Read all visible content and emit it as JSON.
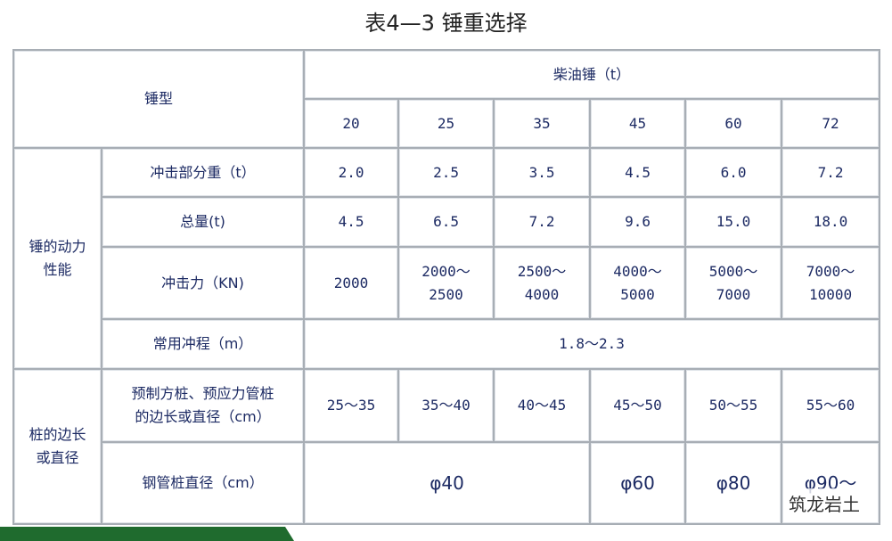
{
  "title": "表4—3  锤重选择",
  "table": {
    "hammer_type": "锤型",
    "diesel_hammer": "柴油锤（t）",
    "sizes": [
      "20",
      "25",
      "35",
      "45",
      "60",
      "72"
    ],
    "groups": [
      {
        "label": "锤的动力\n性能",
        "rows": [
          {
            "label": "冲击部分重（t）",
            "cells": [
              "2.0",
              "2.5",
              "3.5",
              "4.5",
              "6.0",
              "7.2"
            ]
          },
          {
            "label": "总量(t)",
            "cells": [
              "4.5",
              "6.5",
              "7.2",
              "9.6",
              "15.0",
              "18.0"
            ]
          },
          {
            "label": "冲击力（KN)",
            "cells": [
              "2000",
              "2000～\n2500",
              "2500～\n4000",
              "4000～\n5000",
              "5000～\n7000",
              "7000～\n10000"
            ]
          },
          {
            "label": "常用冲程（m）",
            "span_cell": "1.8～2.3"
          }
        ]
      },
      {
        "label": "桩的边长\n或直径",
        "rows": [
          {
            "label": "预制方桩、预应力管桩\n的边长或直径（cm）",
            "cells": [
              "25～35",
              "35～40",
              "40～45",
              "45～50",
              "50～55",
              "55～60"
            ]
          },
          {
            "label": "钢管桩直径（cm）",
            "pipe_cells": [
              "φ40",
              "φ60",
              "φ80",
              "φ90～"
            ]
          }
        ]
      }
    ]
  },
  "logo": "筑龙岩土"
}
